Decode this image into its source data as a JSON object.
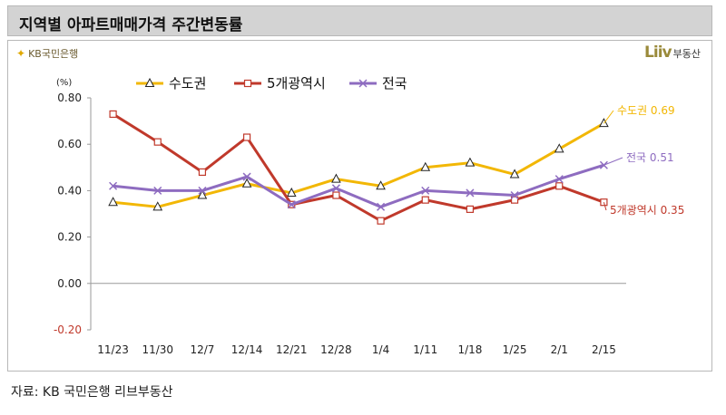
{
  "title": "지역별 아파트매매가격 주간변동률",
  "kb_logo": "KB국민은행",
  "liiv_logo_mark": "Liiv",
  "liiv_logo_text": "부동산",
  "source": "자료: KB 국민은행 리브부동산",
  "chart_data": {
    "type": "line",
    "ylabel": "(%)",
    "ylim": [
      -0.2,
      0.8
    ],
    "yticks": [
      "0.80",
      "0.60",
      "0.40",
      "0.20",
      "0.00",
      "-0.20"
    ],
    "yticks_values": [
      0.8,
      0.6,
      0.4,
      0.2,
      0.0,
      -0.2
    ],
    "categories": [
      "11/23",
      "11/30",
      "12/7",
      "12/14",
      "12/21",
      "12/28",
      "1/4",
      "1/11",
      "1/18",
      "1/25",
      "2/1",
      "2/15"
    ],
    "series": [
      {
        "name": "수도권",
        "color": "#f2b705",
        "marker": "triangle",
        "values": [
          0.35,
          0.33,
          0.38,
          0.43,
          0.39,
          0.45,
          0.42,
          0.5,
          0.52,
          0.47,
          0.58,
          0.69
        ],
        "end_label": "수도권 0.69"
      },
      {
        "name": "5개광역시",
        "color": "#c0392b",
        "marker": "square",
        "values": [
          0.73,
          0.61,
          0.48,
          0.63,
          0.34,
          0.38,
          0.27,
          0.36,
          0.32,
          0.36,
          0.42,
          0.35
        ],
        "end_label": "5개광역시 0.35"
      },
      {
        "name": "전국",
        "color": "#8e6cc0",
        "marker": "x",
        "values": [
          0.42,
          0.4,
          0.4,
          0.46,
          0.34,
          0.41,
          0.33,
          0.4,
          0.39,
          0.38,
          0.45,
          0.51
        ],
        "end_label": "전국 0.51"
      }
    ],
    "legend": "top",
    "grid": false
  }
}
